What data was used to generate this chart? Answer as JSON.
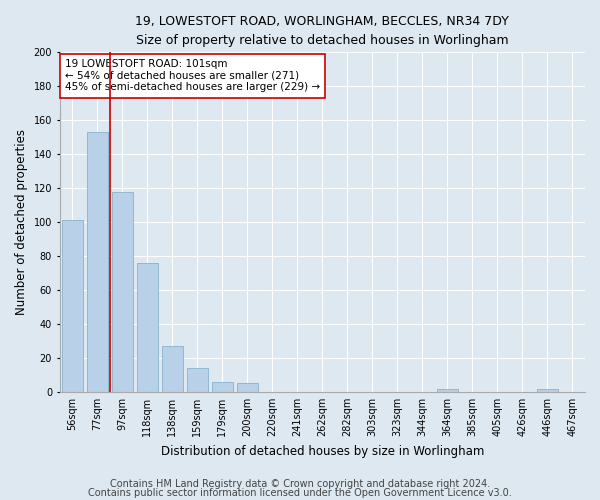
{
  "title_line1": "19, LOWESTOFT ROAD, WORLINGHAM, BECCLES, NR34 7DY",
  "title_line2": "Size of property relative to detached houses in Worlingham",
  "xlabel": "Distribution of detached houses by size in Worlingham",
  "ylabel": "Number of detached properties",
  "categories": [
    "56sqm",
    "77sqm",
    "97sqm",
    "118sqm",
    "138sqm",
    "159sqm",
    "179sqm",
    "200sqm",
    "220sqm",
    "241sqm",
    "262sqm",
    "282sqm",
    "303sqm",
    "323sqm",
    "344sqm",
    "364sqm",
    "385sqm",
    "405sqm",
    "426sqm",
    "446sqm",
    "467sqm"
  ],
  "values": [
    101,
    153,
    118,
    76,
    27,
    14,
    6,
    5,
    0,
    0,
    0,
    0,
    0,
    0,
    0,
    2,
    0,
    0,
    0,
    2,
    0
  ],
  "bar_color": "#b8d0e8",
  "bar_edge_color": "#7aaac8",
  "vline_color": "#cc0000",
  "annotation_text": "19 LOWESTOFT ROAD: 101sqm\n← 54% of detached houses are smaller (271)\n45% of semi-detached houses are larger (229) →",
  "annotation_box_color": "#ffffff",
  "annotation_box_edge": "#cc0000",
  "ylim": [
    0,
    200
  ],
  "yticks": [
    0,
    20,
    40,
    60,
    80,
    100,
    120,
    140,
    160,
    180,
    200
  ],
  "footnote_line1": "Contains HM Land Registry data © Crown copyright and database right 2024.",
  "footnote_line2": "Contains public sector information licensed under the Open Government Licence v3.0.",
  "background_color": "#dde8f0",
  "plot_background": "#dde8f0",
  "grid_color": "#ffffff",
  "title_fontsize": 9,
  "subtitle_fontsize": 8.5,
  "axis_label_fontsize": 8.5,
  "tick_fontsize": 7,
  "annotation_fontsize": 7.5,
  "footnote_fontsize": 7
}
